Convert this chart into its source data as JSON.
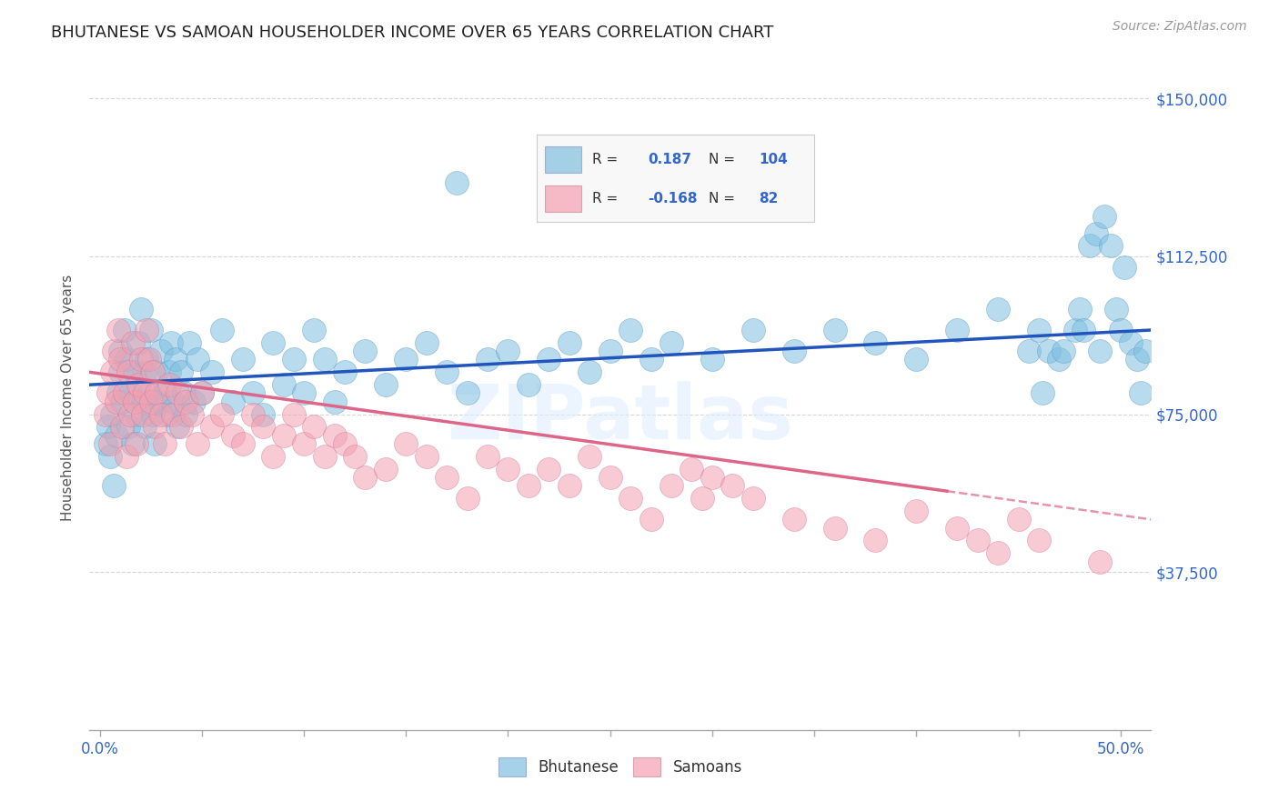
{
  "title": "BHUTANESE VS SAMOAN HOUSEHOLDER INCOME OVER 65 YEARS CORRELATION CHART",
  "source": "Source: ZipAtlas.com",
  "xlabel_ticks_show": [
    "0.0%",
    "50.0%"
  ],
  "xlabel_tick_pos_show": [
    0.0,
    0.5
  ],
  "xlabel_tick_pos_all": [
    0.0,
    0.05,
    0.1,
    0.15,
    0.2,
    0.25,
    0.3,
    0.35,
    0.4,
    0.45,
    0.5
  ],
  "ylabel": "Householder Income Over 65 years",
  "ylabel_ticks": [
    "$37,500",
    "$75,000",
    "$112,500",
    "$150,000"
  ],
  "ylabel_vals": [
    37500,
    75000,
    112500,
    150000
  ],
  "ylim": [
    0,
    158000
  ],
  "xlim": [
    -0.005,
    0.515
  ],
  "legend_labels": [
    "Bhutanese",
    "Samoans"
  ],
  "bhutanese_color": "#7fbfdf",
  "samoan_color": "#f4a0b0",
  "bhutanese_line_color": "#2255bb",
  "samoan_line_color": "#dd6688",
  "R_bhutanese": 0.187,
  "N_bhutanese": 104,
  "R_samoan": -0.168,
  "N_samoan": 82,
  "background_color": "#ffffff",
  "grid_color": "#cccccc",
  "title_color": "#222222",
  "axis_label_color": "#555555",
  "tick_label_color_y": "#3366cc",
  "tick_label_color_x": "#444444",
  "watermark_color": "#ddeeff",
  "bhutanese_x": [
    0.003,
    0.004,
    0.005,
    0.006,
    0.007,
    0.008,
    0.009,
    0.01,
    0.01,
    0.011,
    0.012,
    0.013,
    0.014,
    0.015,
    0.016,
    0.017,
    0.018,
    0.019,
    0.02,
    0.021,
    0.022,
    0.022,
    0.023,
    0.024,
    0.025,
    0.026,
    0.027,
    0.028,
    0.029,
    0.03,
    0.032,
    0.033,
    0.034,
    0.035,
    0.036,
    0.037,
    0.038,
    0.04,
    0.041,
    0.042,
    0.044,
    0.046,
    0.048,
    0.05,
    0.055,
    0.06,
    0.065,
    0.07,
    0.075,
    0.08,
    0.085,
    0.09,
    0.095,
    0.1,
    0.105,
    0.11,
    0.115,
    0.12,
    0.13,
    0.14,
    0.15,
    0.16,
    0.17,
    0.175,
    0.18,
    0.19,
    0.2,
    0.21,
    0.22,
    0.23,
    0.24,
    0.25,
    0.26,
    0.27,
    0.28,
    0.3,
    0.32,
    0.34,
    0.36,
    0.38,
    0.4,
    0.42,
    0.44,
    0.455,
    0.46,
    0.462,
    0.465,
    0.47,
    0.472,
    0.478,
    0.48,
    0.482,
    0.485,
    0.488,
    0.49,
    0.492,
    0.495,
    0.498,
    0.5,
    0.502,
    0.505,
    0.508,
    0.51,
    0.512
  ],
  "bhutanese_y": [
    68000,
    72000,
    65000,
    75000,
    58000,
    70000,
    80000,
    90000,
    85000,
    78000,
    95000,
    88000,
    72000,
    80000,
    68000,
    85000,
    75000,
    92000,
    100000,
    78000,
    85000,
    72000,
    88000,
    80000,
    95000,
    75000,
    68000,
    85000,
    78000,
    90000,
    80000,
    75000,
    85000,
    92000,
    78000,
    88000,
    72000,
    85000,
    80000,
    75000,
    92000,
    78000,
    88000,
    80000,
    85000,
    95000,
    78000,
    88000,
    80000,
    75000,
    92000,
    82000,
    88000,
    80000,
    95000,
    88000,
    78000,
    85000,
    90000,
    82000,
    88000,
    92000,
    85000,
    130000,
    80000,
    88000,
    90000,
    82000,
    88000,
    92000,
    85000,
    90000,
    95000,
    88000,
    92000,
    88000,
    95000,
    90000,
    95000,
    92000,
    88000,
    95000,
    100000,
    90000,
    95000,
    80000,
    90000,
    88000,
    90000,
    95000,
    100000,
    95000,
    115000,
    118000,
    90000,
    122000,
    115000,
    100000,
    95000,
    110000,
    92000,
    88000,
    80000,
    90000
  ],
  "samoan_x": [
    0.003,
    0.004,
    0.005,
    0.006,
    0.007,
    0.008,
    0.009,
    0.01,
    0.011,
    0.012,
    0.013,
    0.014,
    0.015,
    0.016,
    0.017,
    0.018,
    0.019,
    0.02,
    0.021,
    0.022,
    0.023,
    0.024,
    0.025,
    0.026,
    0.027,
    0.028,
    0.03,
    0.032,
    0.034,
    0.036,
    0.038,
    0.04,
    0.042,
    0.045,
    0.048,
    0.05,
    0.055,
    0.06,
    0.065,
    0.07,
    0.075,
    0.08,
    0.085,
    0.09,
    0.095,
    0.1,
    0.105,
    0.11,
    0.115,
    0.12,
    0.125,
    0.13,
    0.14,
    0.15,
    0.16,
    0.17,
    0.18,
    0.19,
    0.2,
    0.21,
    0.22,
    0.23,
    0.24,
    0.25,
    0.26,
    0.27,
    0.28,
    0.29,
    0.295,
    0.3,
    0.31,
    0.32,
    0.34,
    0.36,
    0.38,
    0.4,
    0.42,
    0.43,
    0.44,
    0.45,
    0.46,
    0.49
  ],
  "samoan_y": [
    75000,
    80000,
    68000,
    85000,
    90000,
    78000,
    95000,
    88000,
    72000,
    80000,
    65000,
    85000,
    75000,
    92000,
    78000,
    68000,
    82000,
    88000,
    75000,
    80000,
    95000,
    88000,
    78000,
    85000,
    72000,
    80000,
    75000,
    68000,
    82000,
    75000,
    80000,
    72000,
    78000,
    75000,
    68000,
    80000,
    72000,
    75000,
    70000,
    68000,
    75000,
    72000,
    65000,
    70000,
    75000,
    68000,
    72000,
    65000,
    70000,
    68000,
    65000,
    60000,
    62000,
    68000,
    65000,
    60000,
    55000,
    65000,
    62000,
    58000,
    62000,
    58000,
    65000,
    60000,
    55000,
    50000,
    58000,
    62000,
    55000,
    60000,
    58000,
    55000,
    50000,
    48000,
    45000,
    52000,
    48000,
    45000,
    42000,
    50000,
    45000,
    40000
  ]
}
